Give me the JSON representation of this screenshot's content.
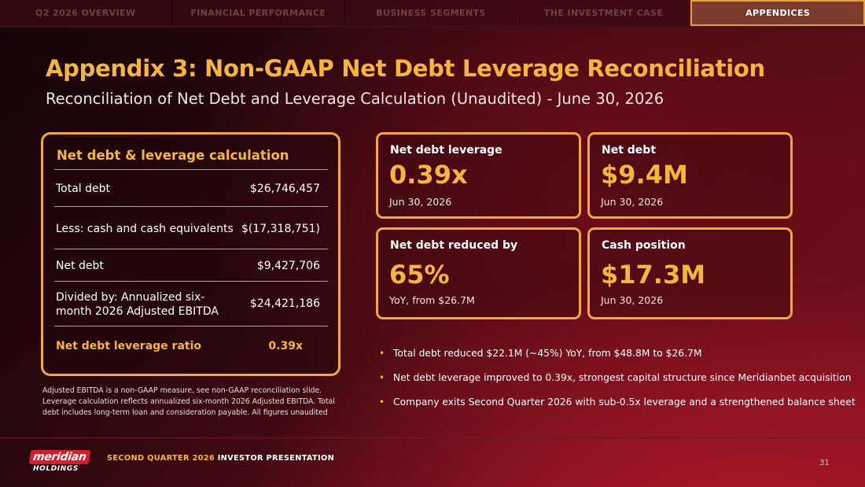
{
  "nav": {
    "tabs": [
      {
        "label": "Q2 2026 OVERVIEW",
        "active": false
      },
      {
        "label": "FINANCIAL PERFORMANCE",
        "active": false
      },
      {
        "label": "BUSINESS SEGMENTS",
        "active": false
      },
      {
        "label": "THE INVESTMENT CASE",
        "active": false
      },
      {
        "label": "APPENDICES",
        "active": true
      }
    ]
  },
  "header": {
    "title": "Appendix 3: Non-GAAP Net Debt Leverage Reconciliation",
    "subtitle": "Reconciliation of Net Debt and Leverage Calculation (Unaudited) - June 30, 2026"
  },
  "calc": {
    "title": "Net debt & leverage calculation",
    "rows": [
      {
        "label": "Total debt",
        "value": "$26,746,457"
      },
      {
        "label": "Less: cash and cash equivalents",
        "value": "$(17,318,751)"
      },
      {
        "label": "Net debt",
        "value": "$9,427,706"
      },
      {
        "label": "Divided by: Annualized six-month 2026 Adjusted EBITDA",
        "value": "$24,421,186"
      },
      {
        "label": "Net debt leverage ratio",
        "value": "0.39x"
      }
    ]
  },
  "footnote": "Adjusted EBITDA is a non-GAAP measure, see non-GAAP reconciliation slide. Leverage calculation reflects annualized six-month 2026 Adjusted EBITDA. Total debt includes long-term loan and consideration payable. All figures unaudited",
  "kpis": [
    {
      "label": "Net debt leverage",
      "value": "0.39x",
      "sub": "Jun 30, 2026"
    },
    {
      "label": "Net debt",
      "value": "$9.4M",
      "sub": "Jun 30, 2026"
    },
    {
      "label": "Net debt reduced by",
      "value": "65%",
      "sub": "YoY, from $26.7M"
    },
    {
      "label": "Cash position",
      "value": "$17.3M",
      "sub": "Jun 30, 2026"
    }
  ],
  "bullets": [
    "Total debt reduced $22.1M (~45%) YoY, from $48.8M to $26.7M",
    "Net debt leverage improved to 0.39x, strongest capital structure since Meridianbet acquisition",
    "Company exits Second Quarter 2026 with sub-0.5x leverage and a strengthened balance sheet"
  ],
  "footer": {
    "logo_name": "meridian",
    "logo_sub": "HOLDINGS",
    "presentation_highlight": "SECOND QUARTER 2026",
    "presentation_rest": "INVESTOR PRESENTATION",
    "page_number": "31"
  },
  "colors": {
    "accent": "#f6b53c",
    "card_border": "#f2a93b",
    "background_dark": "#140507",
    "background_red": "#b0182a",
    "logo_red": "#d4202c"
  }
}
